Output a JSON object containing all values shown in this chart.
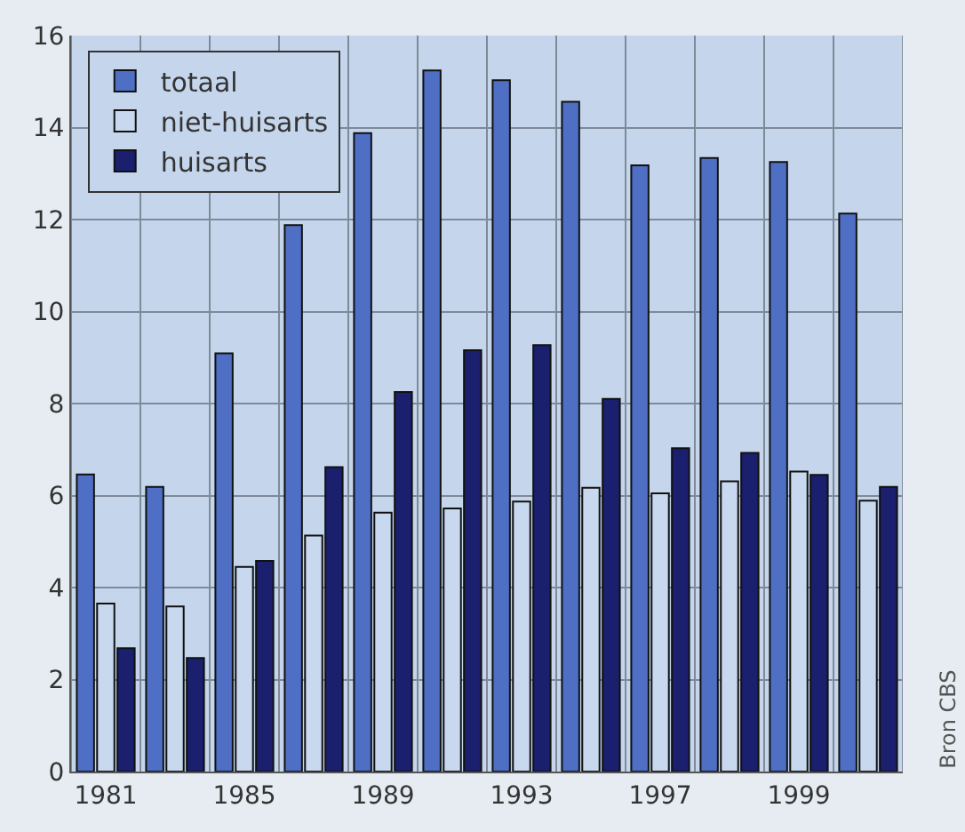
{
  "chart_data": {
    "type": "bar",
    "categories": [
      "1981",
      null,
      "1985",
      null,
      "1989",
      null,
      "1993",
      null,
      "1997",
      null,
      "1999",
      null
    ],
    "series": [
      {
        "name": "totaal",
        "color": "#4f6fc4",
        "values": [
          6.46,
          6.19,
          9.09,
          11.88,
          13.88,
          15.24,
          15.03,
          14.56,
          13.18,
          13.34,
          13.25,
          12.13
        ]
      },
      {
        "name": "niet-huisarts",
        "color": "#c8d8ee",
        "values": [
          3.65,
          3.59,
          4.45,
          5.13,
          5.63,
          5.72,
          5.87,
          6.17,
          6.05,
          6.31,
          6.52,
          5.89
        ]
      },
      {
        "name": "huisarts",
        "color": "#1a1f6e",
        "values": [
          2.68,
          2.47,
          4.58,
          6.62,
          8.25,
          9.16,
          9.27,
          8.1,
          7.03,
          6.93,
          6.45,
          6.19
        ]
      }
    ],
    "ylim": [
      0,
      16
    ],
    "yticks": [
      0,
      2,
      4,
      6,
      8,
      10,
      12,
      14,
      16
    ],
    "grid": true,
    "legend": "top left",
    "annotations": [
      "Bron CBS"
    ]
  }
}
